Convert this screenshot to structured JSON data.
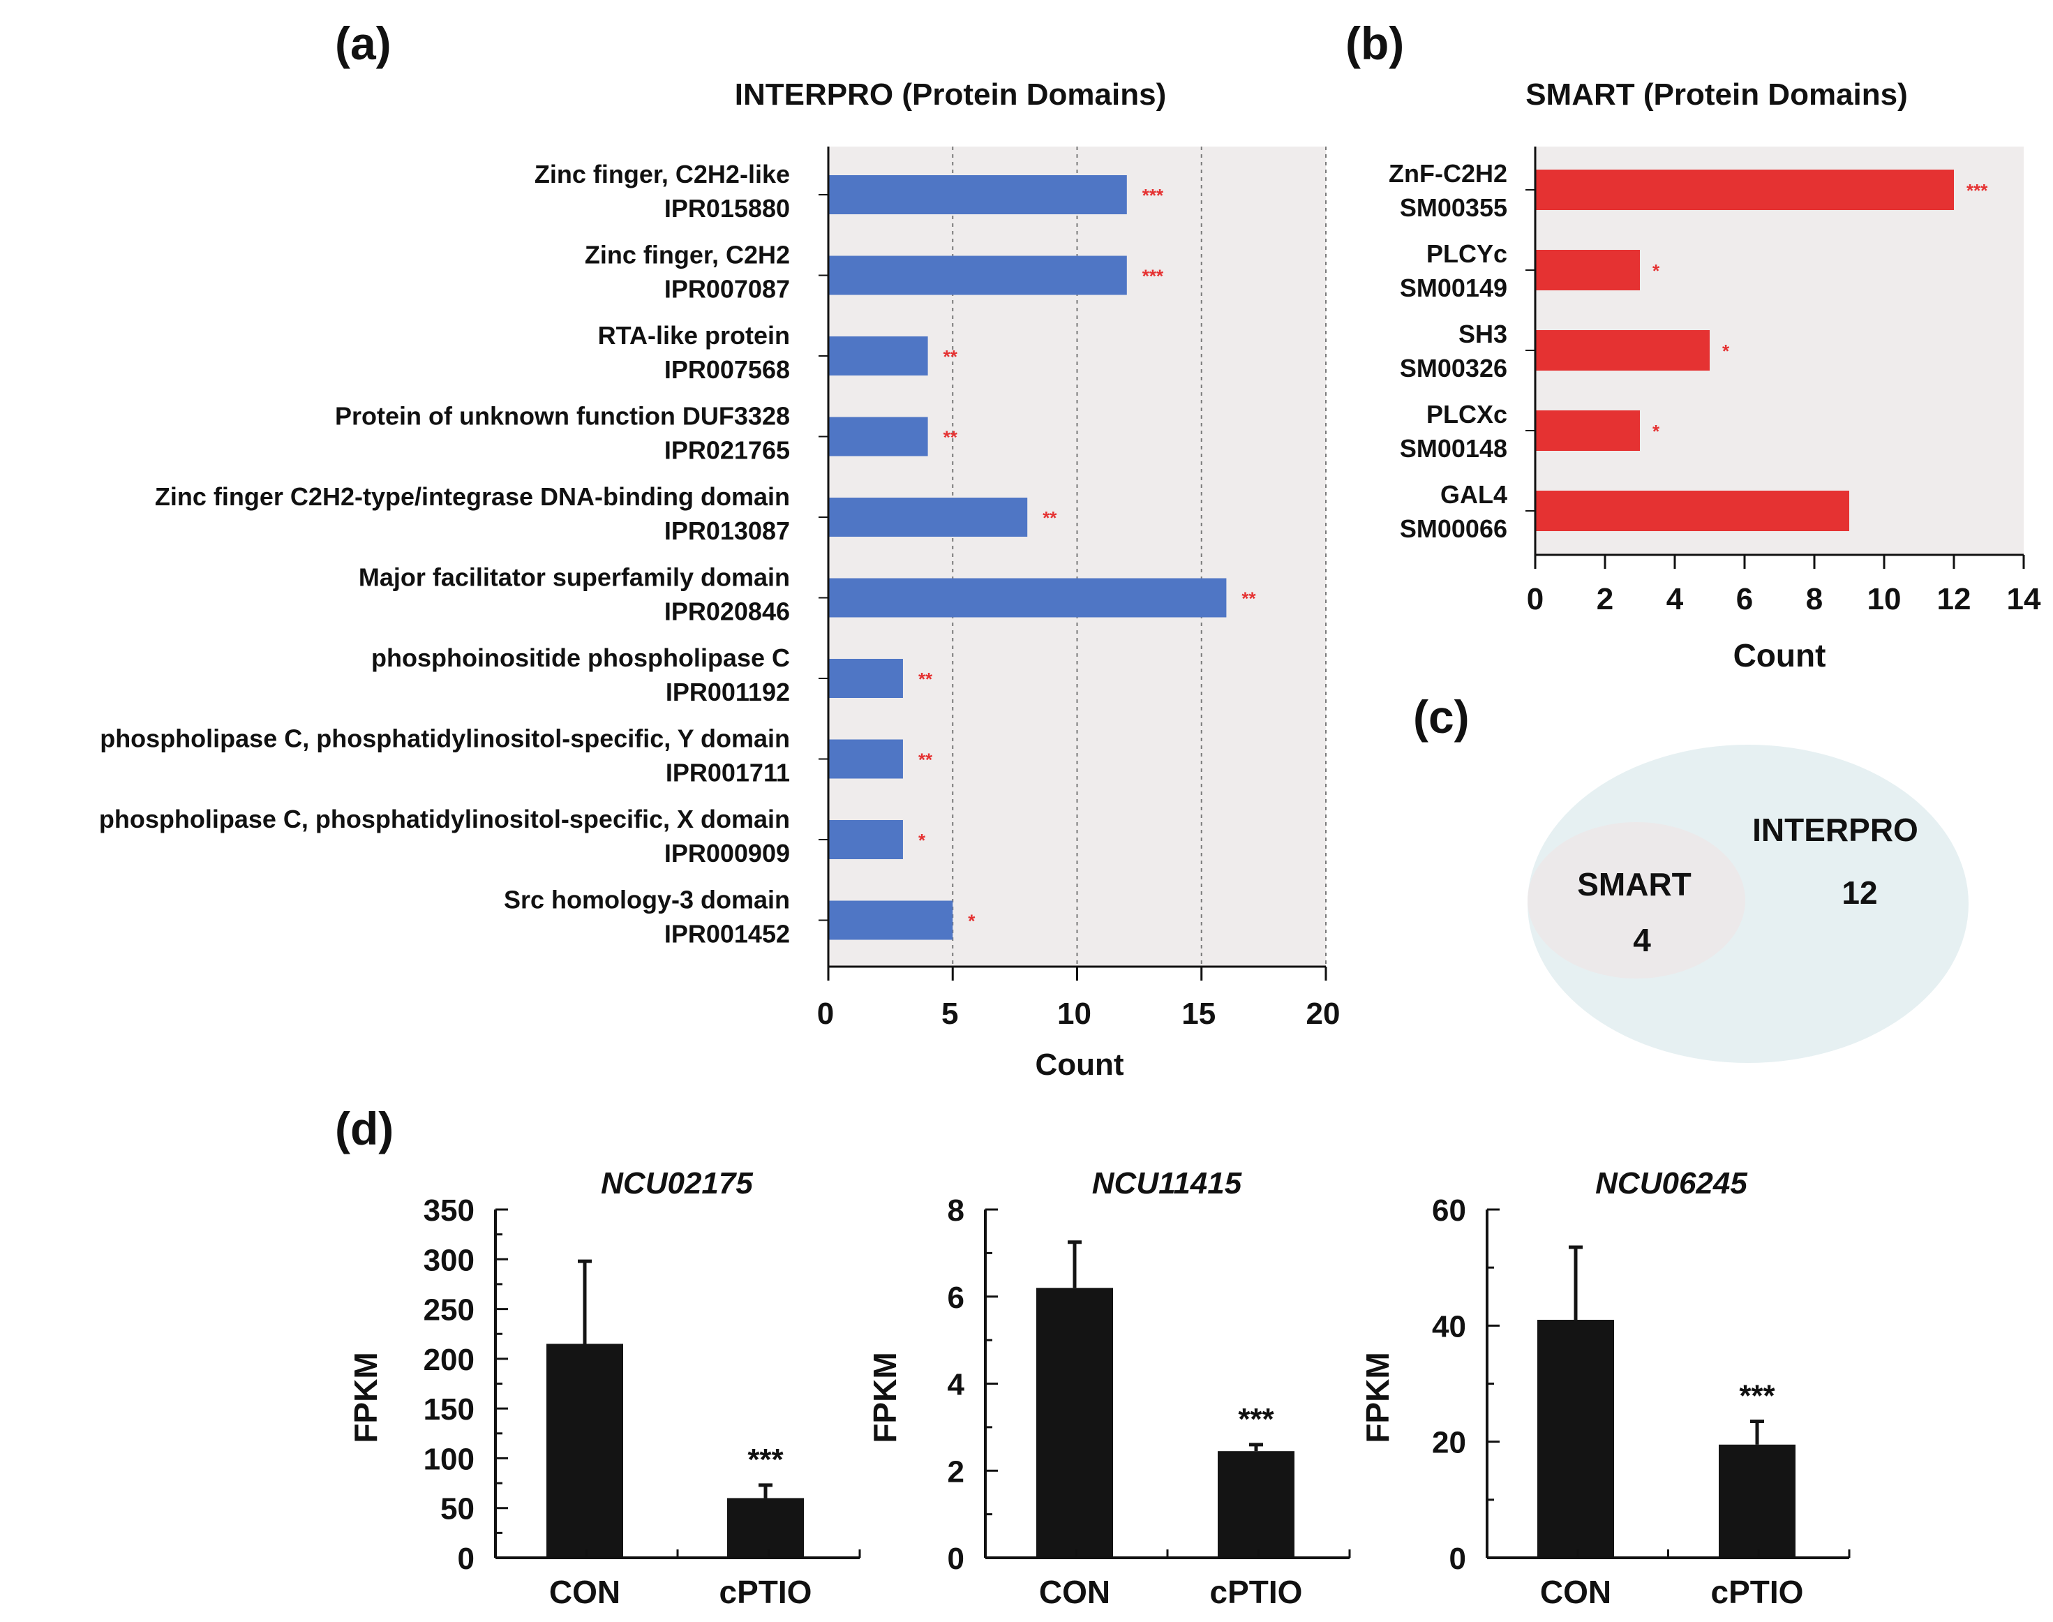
{
  "panels": {
    "a": "(a)",
    "b": "(b)",
    "c": "(c)",
    "d": "(d)"
  },
  "colors": {
    "blue": "#4f76c5",
    "red": "#e53232",
    "plot_bg": "#efecec",
    "star": "#e53232",
    "venn_outer": "#e6f0f2",
    "venn_inner": "#ece9ea",
    "bar_dark": "#141414"
  },
  "chart_data": [
    {
      "id": "interpro",
      "type": "bar",
      "orientation": "horizontal",
      "title": "INTERPRO (Protein Domains)",
      "xlabel": "Count",
      "xlim": [
        0,
        20
      ],
      "xticks": [
        0,
        5,
        10,
        15,
        20
      ],
      "grid": "vertical dotted",
      "categories": [
        {
          "name": "Zinc finger, C2H2-like",
          "id": "IPR015880",
          "value": 12,
          "sig": "***"
        },
        {
          "name": "Zinc finger, C2H2",
          "id": "IPR007087",
          "value": 12,
          "sig": "***"
        },
        {
          "name": "RTA-like protein",
          "id": "IPR007568",
          "value": 4,
          "sig": "**"
        },
        {
          "name": "Protein of unknown function DUF3328",
          "id": "IPR021765",
          "value": 4,
          "sig": "**"
        },
        {
          "name": "Zinc finger C2H2-type/integrase DNA-binding domain",
          "id": "IPR013087",
          "value": 8,
          "sig": "**"
        },
        {
          "name": "Major facilitator superfamily domain",
          "id": "IPR020846",
          "value": 16,
          "sig": "**"
        },
        {
          "name": "phosphoinositide phospholipase C",
          "id": "IPR001192",
          "value": 3,
          "sig": "**"
        },
        {
          "name": "phospholipase C, phosphatidylinositol-specific, Y domain",
          "id": "IPR001711",
          "value": 3,
          "sig": "**"
        },
        {
          "name": "phospholipase C, phosphatidylinositol-specific, X domain",
          "id": "IPR000909",
          "value": 3,
          "sig": "*"
        },
        {
          "name": "Src homology-3 domain",
          "id": "IPR001452",
          "value": 5,
          "sig": "*"
        }
      ]
    },
    {
      "id": "smart",
      "type": "bar",
      "orientation": "horizontal",
      "title": "SMART (Protein Domains)",
      "xlabel": "Count",
      "xlim": [
        0,
        14
      ],
      "xticks": [
        0,
        2,
        4,
        6,
        8,
        10,
        12,
        14
      ],
      "grid": "none",
      "categories": [
        {
          "name": "ZnF-C2H2",
          "id": "SM00355",
          "value": 12,
          "sig": "***"
        },
        {
          "name": "PLCYc",
          "id": "SM00149",
          "value": 3,
          "sig": "*"
        },
        {
          "name": "SH3",
          "id": "SM00326",
          "value": 5,
          "sig": "*"
        },
        {
          "name": "PLCXc",
          "id": "SM00148",
          "value": 3,
          "sig": "*"
        },
        {
          "name": "GAL4",
          "id": "SM00066",
          "value": 9,
          "sig": ""
        }
      ]
    },
    {
      "id": "venn",
      "type": "venn",
      "sets": [
        {
          "name": "INTERPRO",
          "count": "12"
        },
        {
          "name": "SMART",
          "count": "4"
        }
      ]
    },
    {
      "id": "ncu02175",
      "type": "bar",
      "title": "NCU02175",
      "ylabel": "FPKM",
      "ylim": [
        0,
        350
      ],
      "yticks": [
        0,
        50,
        100,
        150,
        200,
        250,
        300,
        350
      ],
      "categories": [
        "CON",
        "cPTIO"
      ],
      "values": [
        215,
        60
      ],
      "errors": [
        83,
        13
      ],
      "sig": [
        "",
        "***"
      ]
    },
    {
      "id": "ncu11415",
      "type": "bar",
      "title": "NCU11415",
      "ylabel": "FPKM",
      "ylim": [
        0,
        8
      ],
      "yticks": [
        0,
        2,
        4,
        6,
        8
      ],
      "categories": [
        "CON",
        "cPTIO"
      ],
      "values": [
        6.2,
        2.45
      ],
      "errors": [
        1.05,
        0.15
      ],
      "sig": [
        "",
        "***"
      ]
    },
    {
      "id": "ncu06245",
      "type": "bar",
      "title": "NCU06245",
      "ylabel": "FPKM",
      "ylim": [
        0,
        60
      ],
      "yticks": [
        0,
        20,
        40,
        60
      ],
      "categories": [
        "CON",
        "cPTIO"
      ],
      "values": [
        41,
        19.5
      ],
      "errors": [
        12.5,
        4
      ],
      "sig": [
        "",
        "***"
      ]
    }
  ]
}
